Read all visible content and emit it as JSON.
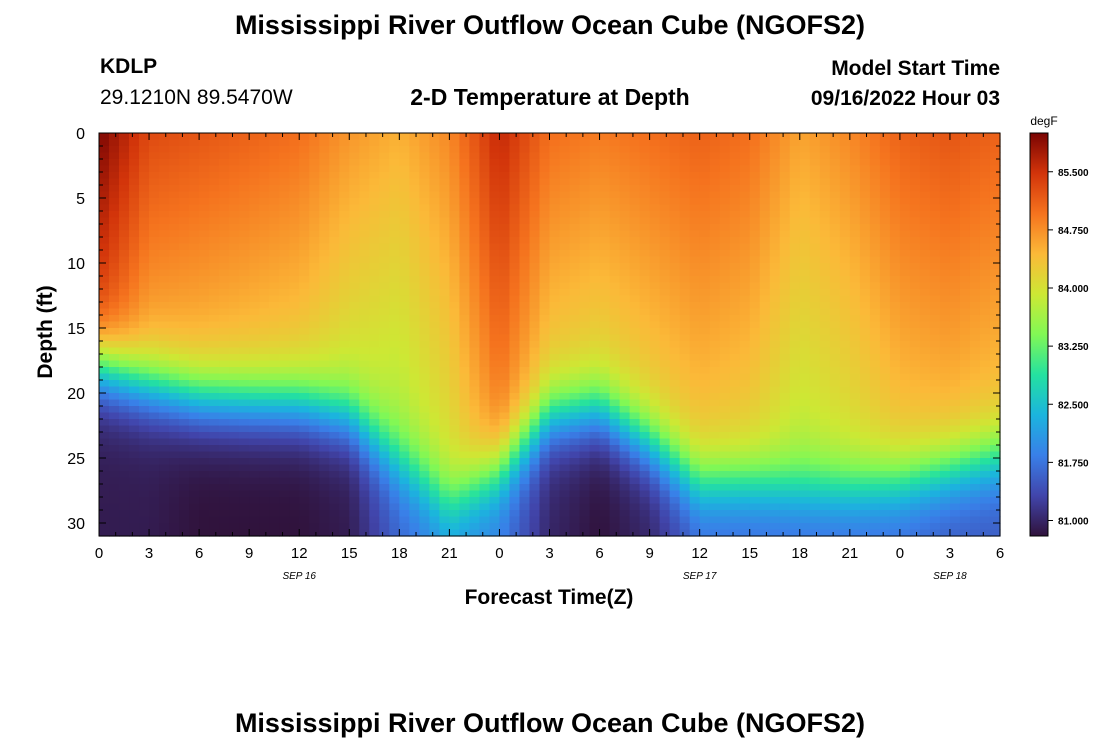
{
  "header": {
    "title": "Mississippi River Outflow Ocean Cube (NGOFS2)",
    "station_id": "KDLP",
    "station_coords": "29.1210N  89.5470W",
    "subtitle": "2-D Temperature at Depth",
    "start_label": "Model Start Time",
    "start_value": "09/16/2022 Hour 03"
  },
  "footer": {
    "title": "Mississippi River Outflow Ocean Cube (NGOFS2)"
  },
  "chart_data": {
    "type": "heatmap",
    "xlabel": "Forecast Time(Z)",
    "ylabel": "Depth (ft)",
    "x_tick_labels": [
      "0",
      "3",
      "6",
      "9",
      "12",
      "15",
      "18",
      "21",
      "0",
      "3",
      "6",
      "9",
      "12",
      "15",
      "18",
      "21",
      "0",
      "3",
      "6"
    ],
    "date_labels": [
      {
        "label": "SEP 16",
        "at_tick": 4
      },
      {
        "label": "SEP 17",
        "at_tick": 12
      },
      {
        "label": "SEP 18",
        "at_tick": 17
      }
    ],
    "x_range_hours": [
      0,
      54
    ],
    "y_ticks": [
      0,
      5,
      10,
      15,
      20,
      25,
      30
    ],
    "ylim": [
      0,
      31
    ],
    "colorbar": {
      "unit": "degF",
      "ticks": [
        "85.500",
        "84.750",
        "84.000",
        "83.250",
        "82.500",
        "81.750",
        "81.000"
      ],
      "range": [
        80.8,
        86.0
      ]
    },
    "surface_temperature_degF": [
      86.0,
      85.3,
      85.2,
      85.1,
      85.0,
      84.7,
      84.5,
      84.8,
      85.6,
      85.0,
      84.9,
      85.0,
      85.1,
      85.0,
      84.6,
      84.8,
      85.1,
      85.2,
      85.1
    ],
    "bottom_temperature_degF": [
      80.9,
      80.9,
      80.8,
      80.8,
      80.8,
      80.9,
      81.6,
      82.0,
      81.8,
      81.0,
      80.8,
      81.0,
      81.6,
      81.6,
      81.6,
      81.6,
      81.6,
      81.5,
      81.5
    ],
    "thermocline_depth_ft": [
      18.0,
      19.5,
      20.5,
      20.8,
      21.0,
      22.0,
      25.5,
      28.5,
      26.0,
      22.0,
      21.5,
      24.0,
      27.0,
      27.0,
      27.5,
      27.5,
      27.0,
      26.0,
      25.0
    ]
  }
}
